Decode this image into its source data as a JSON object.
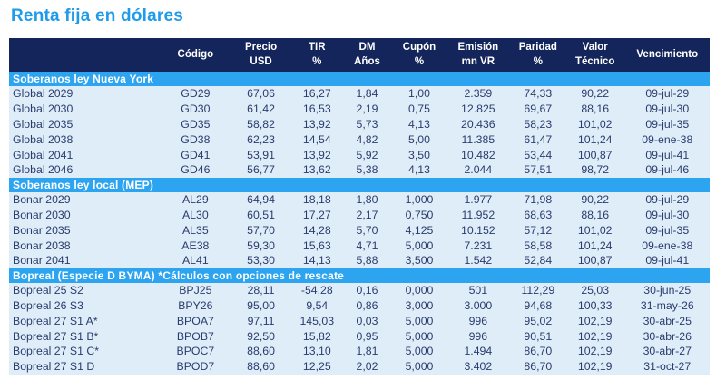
{
  "page_title": "Renta fija en dólares",
  "colors": {
    "title_blue": "#1e9be9",
    "header_navy": "#13255a",
    "section_blue": "#2ca4f0",
    "row_light_blue": "#dfedf8",
    "body_text_navy": "#2a3c6e",
    "header_text": "#ffffff"
  },
  "table": {
    "columns": [
      {
        "key": "name",
        "line1": "",
        "line2": ""
      },
      {
        "key": "codigo",
        "line1": "Código",
        "line2": ""
      },
      {
        "key": "precio",
        "line1": "Precio",
        "line2": "USD"
      },
      {
        "key": "tir",
        "line1": "TIR",
        "line2": "%"
      },
      {
        "key": "dm",
        "line1": "DM",
        "line2": "Años"
      },
      {
        "key": "cupon",
        "line1": "Cupón",
        "line2": "%"
      },
      {
        "key": "emision",
        "line1": "Emisión",
        "line2": "mn VR"
      },
      {
        "key": "paridad",
        "line1": "Paridad",
        "line2": "%"
      },
      {
        "key": "valor",
        "line1": "Valor",
        "line2": "Técnico"
      },
      {
        "key": "vencimiento",
        "line1": "Vencimiento",
        "line2": ""
      }
    ],
    "sections": [
      {
        "header": "Soberanos ley Nueva York",
        "rows": [
          [
            "Global 2029",
            "GD29",
            "67,06",
            "16,27",
            "1,84",
            "1,00",
            "2.359",
            "74,33",
            "90,22",
            "09-jul-29"
          ],
          [
            "Global 2030",
            "GD30",
            "61,42",
            "16,53",
            "2,19",
            "0,75",
            "12.825",
            "69,67",
            "88,16",
            "09-jul-30"
          ],
          [
            "Global 2035",
            "GD35",
            "58,82",
            "13,92",
            "5,73",
            "4,13",
            "20.436",
            "58,23",
            "101,02",
            "09-jul-35"
          ],
          [
            "Global 2038",
            "GD38",
            "62,23",
            "14,54",
            "4,82",
            "5,00",
            "11.385",
            "61,47",
            "101,24",
            "09-ene-38"
          ],
          [
            "Global 2041",
            "GD41",
            "53,91",
            "13,92",
            "5,92",
            "3,50",
            "10.482",
            "53,44",
            "100,87",
            "09-jul-41"
          ],
          [
            "Global 2046",
            "GD46",
            "56,77",
            "13,62",
            "5,38",
            "4,13",
            "2.044",
            "57,51",
            "98,72",
            "09-jul-46"
          ]
        ]
      },
      {
        "header": "Soberanos ley local (MEP)",
        "rows": [
          [
            "Bonar 2029",
            "AL29",
            "64,94",
            "18,18",
            "1,80",
            "1,000",
            "1.977",
            "71,98",
            "90,22",
            "09-jul-29"
          ],
          [
            "Bonar 2030",
            "AL30",
            "60,51",
            "17,27",
            "2,17",
            "0,750",
            "11.952",
            "68,63",
            "88,16",
            "09-jul-30"
          ],
          [
            "Bonar 2035",
            "AL35",
            "57,70",
            "14,28",
            "5,70",
            "4,125",
            "10.152",
            "57,12",
            "101,02",
            "09-jul-35"
          ],
          [
            "Bonar 2038",
            "AE38",
            "59,30",
            "15,63",
            "4,71",
            "5,000",
            "7.231",
            "58,58",
            "101,24",
            "09-ene-38"
          ],
          [
            "Bonar 2041",
            "AL41",
            "53,30",
            "14,13",
            "5,88",
            "3,500",
            "1.542",
            "52,84",
            "100,87",
            "09-jul-41"
          ]
        ]
      },
      {
        "header": "Bopreal (Especie D BYMA) *Cálculos con opciones de rescate",
        "rows": [
          [
            "Bopreal 25 S2",
            "BPJ25",
            "28,11",
            "-54,28",
            "0,16",
            "0,000",
            "501",
            "112,29",
            "25,03",
            "30-jun-25"
          ],
          [
            "Bopreal 26 S3",
            "BPY26",
            "95,00",
            "9,54",
            "0,86",
            "3,000",
            "3.000",
            "94,68",
            "100,33",
            "31-may-26"
          ],
          [
            "Bopreal 27 S1 A*",
            "BPOA7",
            "97,11",
            "145,03",
            "0,03",
            "5,000",
            "996",
            "95,02",
            "102,19",
            "30-abr-25"
          ],
          [
            "Bopreal 27 S1 B*",
            "BPOB7",
            "92,50",
            "15,82",
            "0,95",
            "5,000",
            "996",
            "90,51",
            "102,19",
            "30-abr-26"
          ],
          [
            "Bopreal 27 S1 C*",
            "BPOC7",
            "88,60",
            "13,10",
            "1,81",
            "5,000",
            "1.494",
            "86,70",
            "102,19",
            "30-abr-27"
          ],
          [
            "Bopreal 27 S1 D",
            "BPOD7",
            "88,60",
            "12,25",
            "2,02",
            "5,000",
            "3.402",
            "86,70",
            "102,19",
            "31-oct-27"
          ]
        ]
      }
    ]
  }
}
